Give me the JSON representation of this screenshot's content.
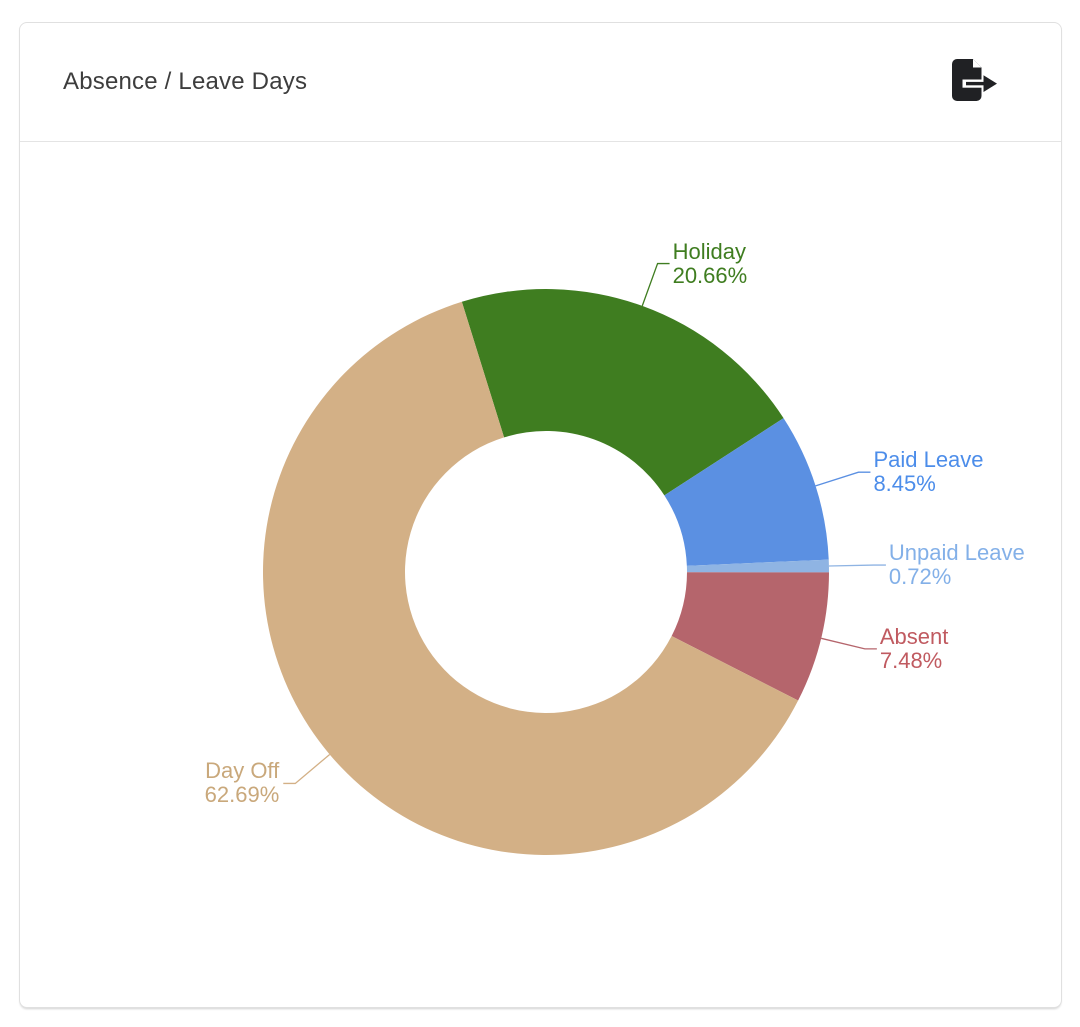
{
  "card": {
    "title": "Absence / Leave Days",
    "export_icon": "file-export-icon"
  },
  "chart_data": {
    "type": "pie",
    "title": "Absence / Leave Days",
    "donut": true,
    "inner_radius_pct": 50,
    "start_angle_deg_from_top": -17.3,
    "direction": "clockwise",
    "legend_position": "none",
    "labels_outside": true,
    "segments": [
      {
        "label": "Holiday",
        "value_pct": 20.66,
        "display": "20.66%",
        "color": "#3f7d20",
        "label_color": "#3f7d20"
      },
      {
        "label": "Paid Leave",
        "value_pct": 8.45,
        "display": "8.45%",
        "color": "#5b90e2",
        "label_color": "#4c8dea"
      },
      {
        "label": "Unpaid Leave",
        "value_pct": 0.72,
        "display": "0.72%",
        "color": "#8fb4e3",
        "label_color": "#83b0e8"
      },
      {
        "label": "Absent",
        "value_pct": 7.48,
        "display": "7.48%",
        "color": "#b5656c",
        "label_color": "#c05a60"
      },
      {
        "label": "Day Off",
        "value_pct": 62.69,
        "display": "62.69%",
        "color": "#d3b086",
        "label_color": "#c9a87b"
      }
    ]
  }
}
